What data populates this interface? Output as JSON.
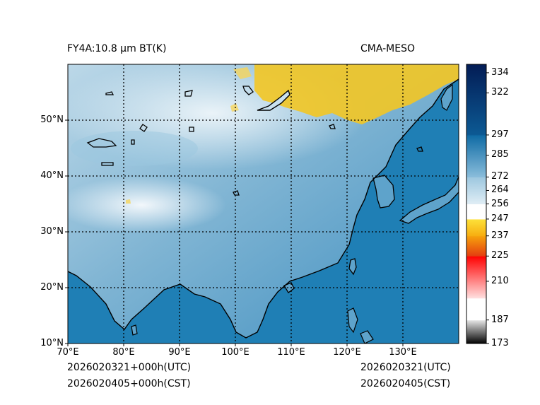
{
  "header": {
    "product": "FY4A:10.8 µm BT(K)",
    "model": "CMA-MESO"
  },
  "footer": {
    "utc_valid": "2026020321+000h(UTC)",
    "cst_valid": "2026020405+000h(CST)",
    "utc_init": "2026020321(UTC)",
    "cst_init": "2026020405(CST)"
  },
  "map": {
    "extent": {
      "lon_min": 70,
      "lon_max": 140,
      "lat_min": 10,
      "lat_max": 60
    },
    "lon_ticks": [
      {
        "value": 70,
        "label": "70°E"
      },
      {
        "value": 80,
        "label": "80°E"
      },
      {
        "value": 90,
        "label": "90°E"
      },
      {
        "value": 100,
        "label": "100°E"
      },
      {
        "value": 110,
        "label": "110°E"
      },
      {
        "value": 120,
        "label": "120°E"
      },
      {
        "value": 130,
        "label": "130°E"
      }
    ],
    "lat_ticks": [
      {
        "value": 10,
        "label": "10°N"
      },
      {
        "value": 20,
        "label": "20°N"
      },
      {
        "value": 30,
        "label": "30°N"
      },
      {
        "value": 40,
        "label": "40°N"
      },
      {
        "value": 50,
        "label": "50°N"
      }
    ],
    "colors": {
      "ocean": "#1f7fb5",
      "land_mid": "#6aa8cc",
      "land_light": "#c4dcea",
      "cloud": "#f3c624",
      "coast": "#000000"
    }
  },
  "colorbar": {
    "min": 173,
    "max": 339,
    "ticks": [
      {
        "value": 173,
        "label": "173"
      },
      {
        "value": 187,
        "label": "187"
      },
      {
        "value": 210,
        "label": "210"
      },
      {
        "value": 225,
        "label": "225"
      },
      {
        "value": 237,
        "label": "237"
      },
      {
        "value": 247,
        "label": "247"
      },
      {
        "value": 256,
        "label": "256"
      },
      {
        "value": 264,
        "label": "264"
      },
      {
        "value": 272,
        "label": "272"
      },
      {
        "value": 285,
        "label": "285"
      },
      {
        "value": 297,
        "label": "297"
      },
      {
        "value": 322,
        "label": "322"
      },
      {
        "value": 334,
        "label": "334"
      }
    ],
    "bands": [
      {
        "from": 173,
        "to": 187,
        "c1": "#000000",
        "c2": "#e8e8e8"
      },
      {
        "from": 187,
        "to": 200,
        "c1": "#ffffff",
        "c2": "#ffffff"
      },
      {
        "from": 200,
        "to": 225,
        "c1": "#ffe0e0",
        "c2": "#ff0000"
      },
      {
        "from": 225,
        "to": 237,
        "c1": "#e43c10",
        "c2": "#f6a30c"
      },
      {
        "from": 237,
        "to": 247,
        "c1": "#f7ad10",
        "c2": "#fde23a"
      },
      {
        "from": 247,
        "to": 256,
        "c1": "#ffffff",
        "c2": "#ffffff"
      },
      {
        "from": 256,
        "to": 272,
        "c1": "#e0edf5",
        "c2": "#9cc7df"
      },
      {
        "from": 272,
        "to": 297,
        "c1": "#8abddb",
        "c2": "#0e6aa4"
      },
      {
        "from": 297,
        "to": 339,
        "c1": "#0c5a94",
        "c2": "#031c55"
      }
    ]
  }
}
